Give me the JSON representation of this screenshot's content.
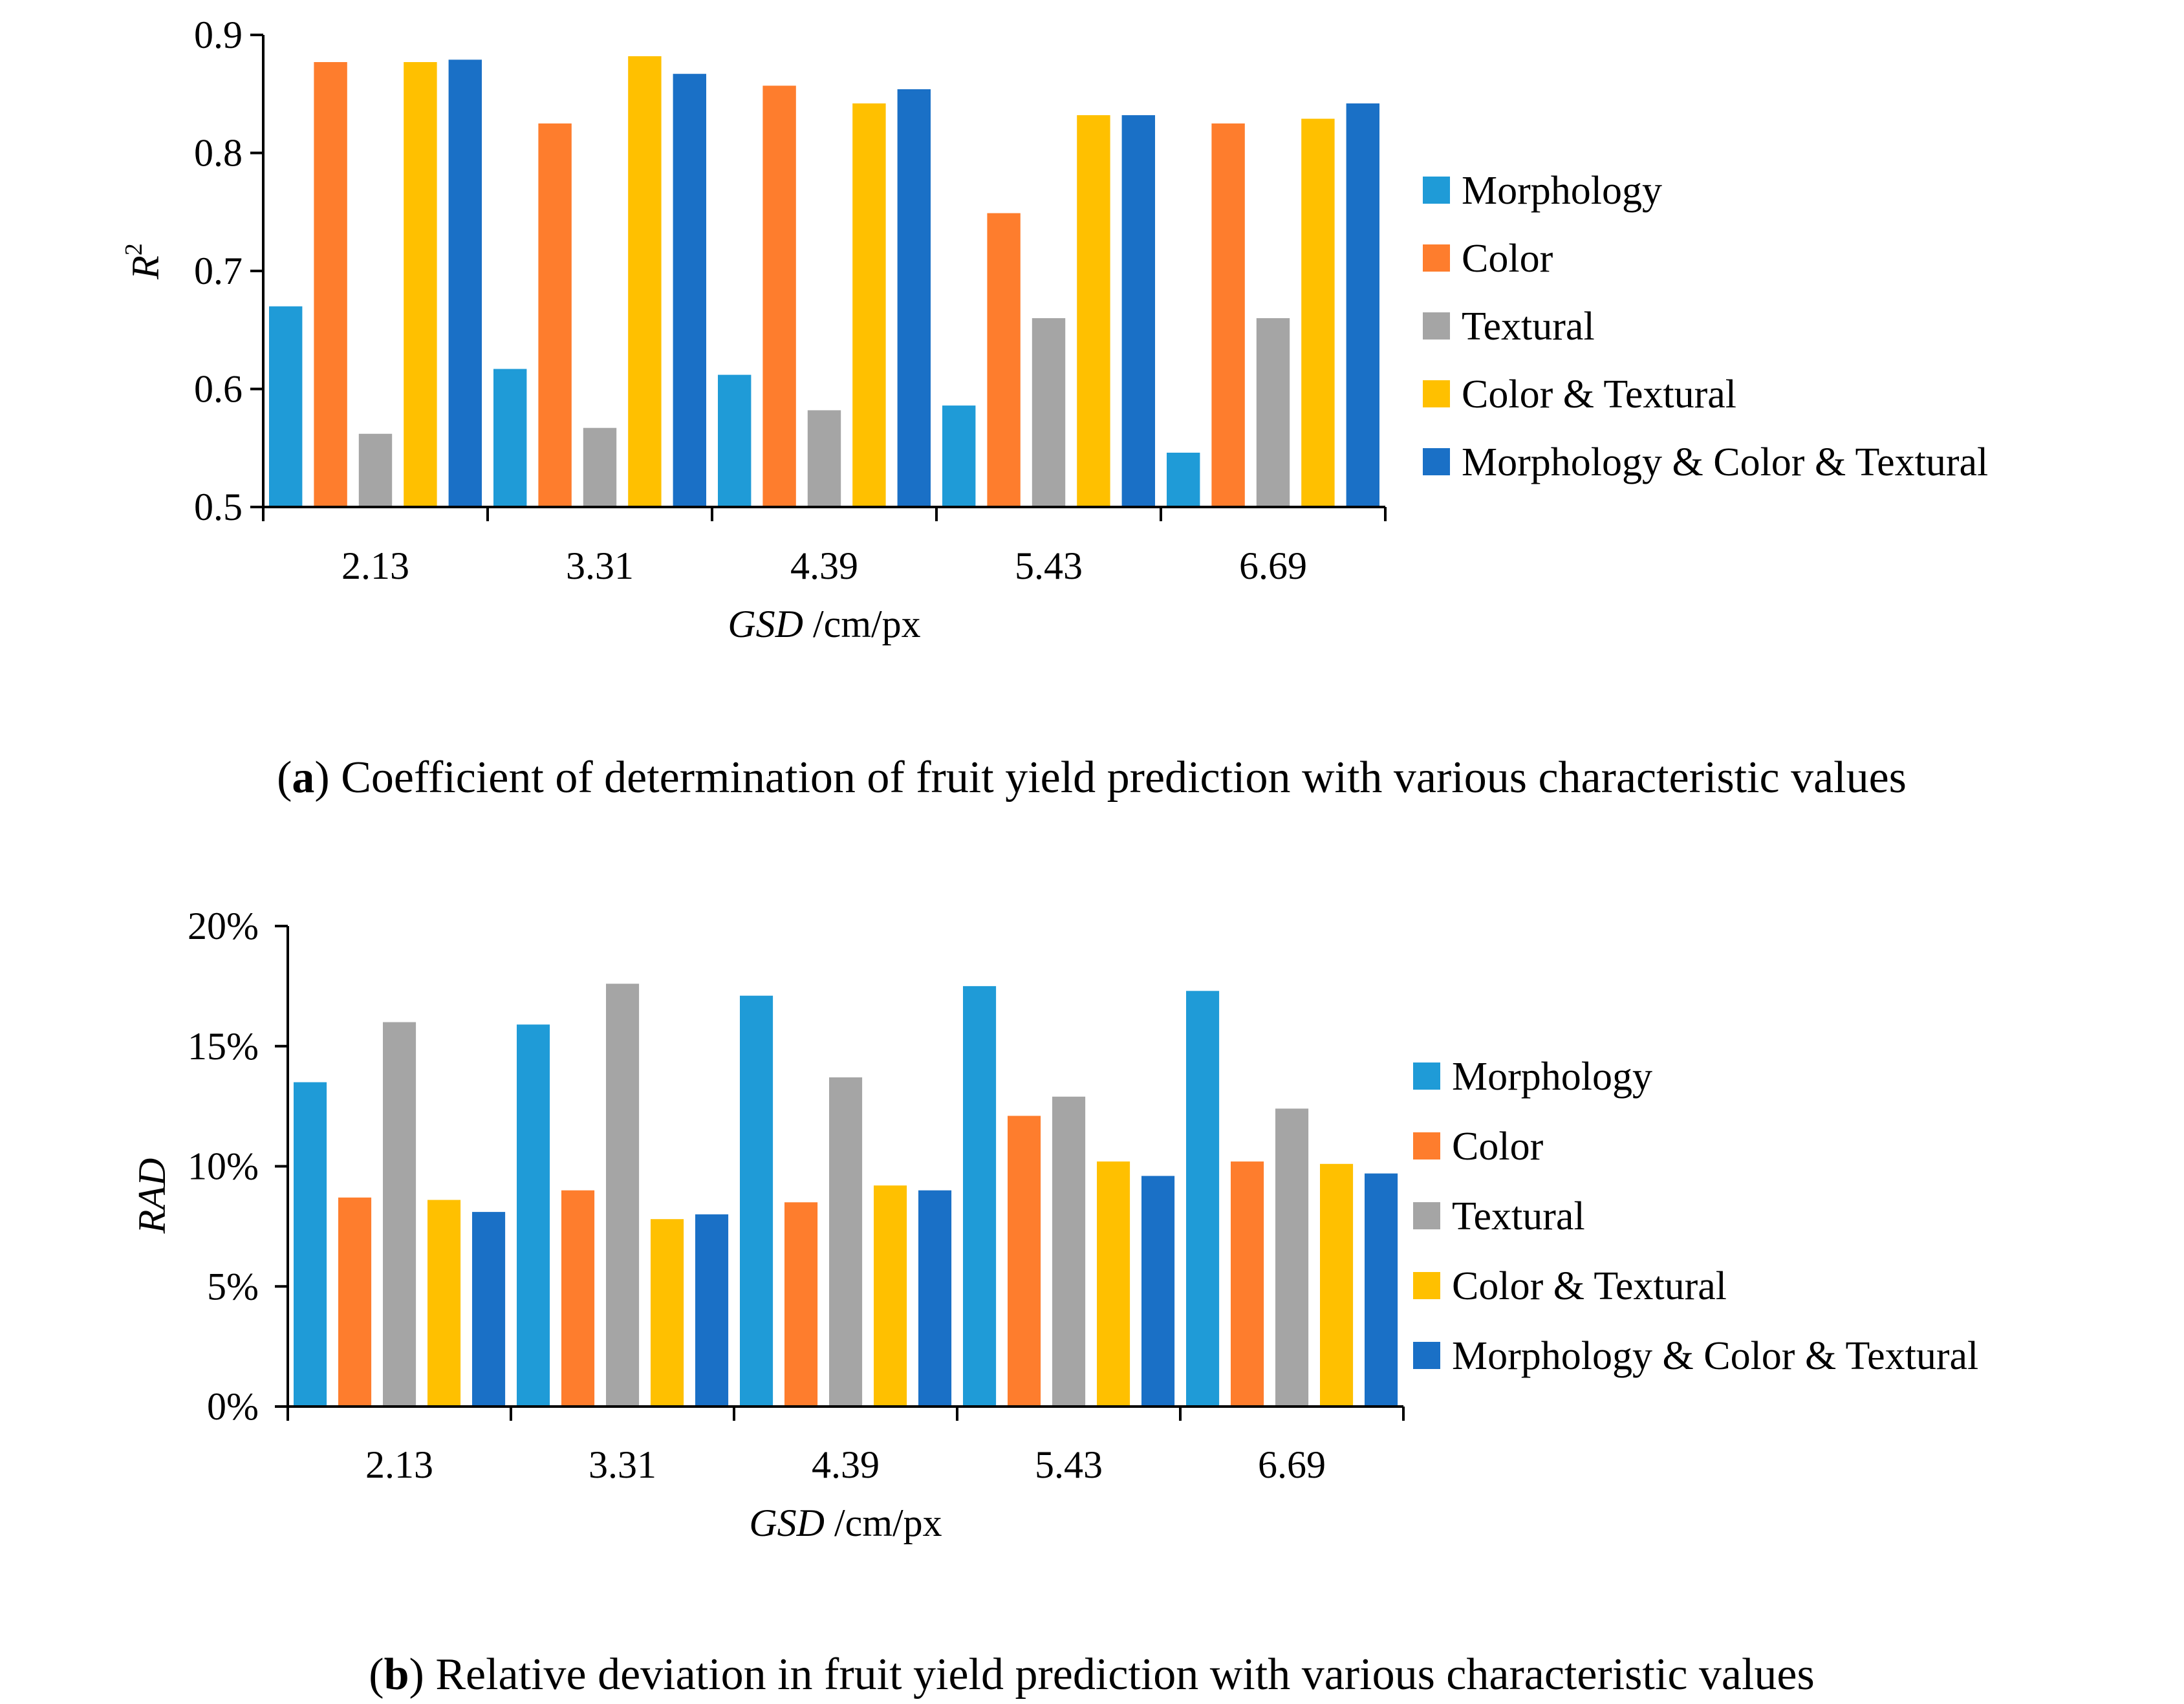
{
  "chart_data": [
    {
      "type": "bar",
      "title": "",
      "caption_label": "a",
      "caption_text": ") Coefficient of determination of fruit yield prediction with various characteristic values",
      "xlabel_italic": "GSD",
      "xlabel_rest": " /cm/px",
      "ylabel": "R",
      "ylabel_sup": "2",
      "categories": [
        "2.13",
        "3.31",
        "4.39",
        "5.43",
        "6.69"
      ],
      "yticks": [
        "0.5",
        "0.6",
        "0.7",
        "0.8",
        "0.9"
      ],
      "ylim": [
        0.5,
        0.9
      ],
      "series": [
        {
          "name": "Morphology",
          "color": "#1f9bd7",
          "values": [
            0.67,
            0.617,
            0.612,
            0.586,
            0.546
          ]
        },
        {
          "name": "Color",
          "color": "#fe7d2d",
          "values": [
            0.877,
            0.825,
            0.857,
            0.749,
            0.825
          ]
        },
        {
          "name": "Textural",
          "color": "#a5a5a5",
          "values": [
            0.562,
            0.567,
            0.582,
            0.66,
            0.66
          ]
        },
        {
          "name": "Color & Textural",
          "color": "#ffc000",
          "values": [
            0.877,
            0.882,
            0.842,
            0.832,
            0.829
          ]
        },
        {
          "name": "Morphology & Color & Textural",
          "color": "#1a70c6",
          "values": [
            0.879,
            0.867,
            0.854,
            0.832,
            0.842
          ]
        }
      ]
    },
    {
      "type": "bar",
      "title": "",
      "caption_label": "b",
      "caption_text": ") Relative deviation in fruit yield prediction with various characteristic values",
      "xlabel_italic": "GSD",
      "xlabel_rest": " /cm/px",
      "ylabel": "RAD",
      "ylabel_sup": "",
      "categories": [
        "2.13",
        "3.31",
        "4.39",
        "5.43",
        "6.69"
      ],
      "yticks": [
        "0%",
        "5%",
        "10%",
        "15%",
        "20%"
      ],
      "ylim": [
        0,
        20
      ],
      "series": [
        {
          "name": "Morphology",
          "color": "#1f9bd7",
          "values": [
            13.5,
            15.9,
            17.1,
            17.5,
            17.3
          ]
        },
        {
          "name": "Color",
          "color": "#fe7d2d",
          "values": [
            8.7,
            9.0,
            8.5,
            12.1,
            10.2
          ]
        },
        {
          "name": "Textural",
          "color": "#a5a5a5",
          "values": [
            16.0,
            17.6,
            13.7,
            12.9,
            12.4
          ]
        },
        {
          "name": "Color & Textural",
          "color": "#ffc000",
          "values": [
            8.6,
            7.8,
            9.2,
            10.2,
            10.1
          ]
        },
        {
          "name": "Morphology & Color & Textural",
          "color": "#1a70c6",
          "values": [
            8.1,
            8.0,
            9.0,
            9.6,
            9.7
          ]
        }
      ]
    }
  ]
}
